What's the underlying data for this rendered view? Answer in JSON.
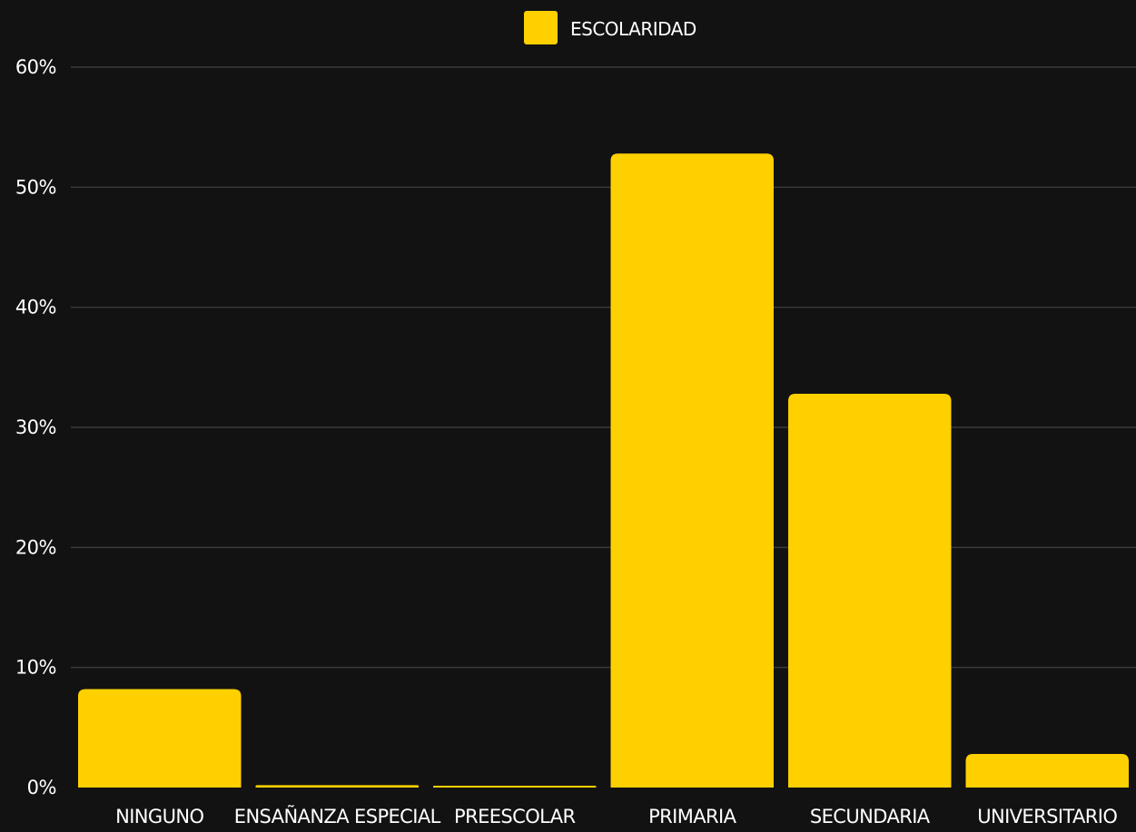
{
  "chart_data": {
    "type": "bar",
    "categories": [
      "NINGUNO",
      "ENSAÑANZA ESPECIAL",
      "PREESCOLAR",
      "PRIMARIA",
      "SECUNDARIA",
      "UNIVERSITARIO"
    ],
    "series": [
      {
        "name": "ESCOLARIDAD",
        "values": [
          8.2,
          0.2,
          0.1,
          52.8,
          32.8,
          2.8
        ],
        "color": "#FFD000"
      }
    ],
    "ylim": [
      0,
      60
    ],
    "yticks": [
      0,
      10,
      20,
      30,
      40,
      50,
      60
    ],
    "ytick_labels": [
      "0%",
      "10%",
      "20%",
      "30%",
      "40%",
      "50%",
      "60%"
    ],
    "grid": true,
    "legend_position": "top-center",
    "colors": {
      "background": "#121212",
      "bar": "#FFD000",
      "grid": "#3a3a3a",
      "text": "#ffffff"
    }
  }
}
